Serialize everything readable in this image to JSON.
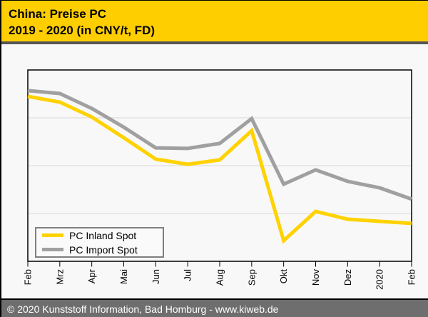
{
  "header": {
    "title_line1": "China: Preise PC",
    "title_line2": "2019 - 2020 (in CNY/t, FD)",
    "bg_color": "#FFCE00",
    "text_color": "#000000"
  },
  "footer": {
    "text": "© 2020 Kunststoff Information, Bad Homburg - www.kiweb.de",
    "bg_color": "#6E6E6E",
    "text_color": "#FFFFFF"
  },
  "legend": {
    "position": "bottom-left",
    "items": [
      {
        "label": "PC Inland Spot",
        "color": "#FFD200"
      },
      {
        "label": "PC Import Spot",
        "color": "#A0A0A0"
      }
    ]
  },
  "chart_data": {
    "type": "line",
    "title": "China: Preise PC 2019 - 2020 (in CNY/t, FD)",
    "categories": [
      "Feb",
      "Mrz",
      "Apr",
      "Mai",
      "Jun",
      "Jul",
      "Aug",
      "Sep",
      "Okt",
      "Nov",
      "Dez",
      "2020",
      "Feb"
    ],
    "series": [
      {
        "name": "PC Inland Spot",
        "color": "#FFD200",
        "values": [
          86.2,
          83.2,
          75.4,
          64.6,
          53.4,
          50.7,
          53.0,
          68.3,
          10.8,
          26.1,
          22.0,
          20.9,
          19.8
        ]
      },
      {
        "name": "PC Import Spot",
        "color": "#A0A0A0",
        "values": [
          89.2,
          87.7,
          79.9,
          70.1,
          59.3,
          59.0,
          61.6,
          74.6,
          40.3,
          47.8,
          41.8,
          38.4,
          32.5
        ]
      }
    ],
    "xlabel": "",
    "ylabel": "",
    "y_axis_tick_labels_visible": false,
    "value_scale": "relative-percent-of-plot-height (no numeric y labels shown in chart)",
    "ylim": [
      0,
      100
    ],
    "gridline_values": [
      25,
      50,
      75
    ],
    "grid": "horizontal",
    "grid_color": "#D9D9D9",
    "axis_color": "#000000",
    "legend_position": "bottom-left"
  }
}
